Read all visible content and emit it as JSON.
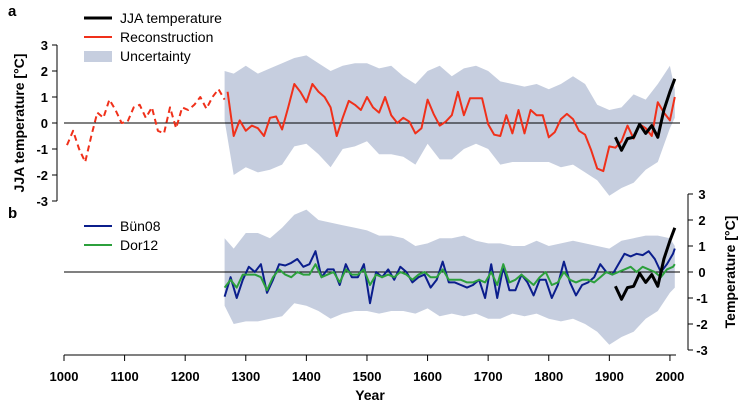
{
  "chart_data": [
    {
      "panel_label": "a",
      "type": "line",
      "ylabel": "JJA temperature [°C]",
      "ylim": [
        -3,
        3
      ],
      "yticks": [
        "3",
        "2",
        "1",
        "0",
        "-1",
        "-2",
        "-3"
      ],
      "legend": [
        "JJA temperature",
        "Reconstruction",
        "Uncertainty"
      ],
      "colors": {
        "instrumental": "#000000",
        "reconstruction": "#f0301a",
        "uncertainty": "#c6cedf"
      },
      "series": [
        {
          "name": "JJA temperature",
          "x": [
            1910,
            1920,
            1930,
            1940,
            1950,
            1960,
            1970,
            1980,
            1990,
            2000,
            2008
          ],
          "y": [
            -0.55,
            -1.05,
            -0.6,
            -0.55,
            -0.05,
            -0.4,
            -0.1,
            -0.55,
            0.5,
            1.2,
            1.7
          ]
        },
        {
          "name": "Reconstruction",
          "x": [
            1270,
            1280,
            1290,
            1300,
            1310,
            1320,
            1330,
            1340,
            1350,
            1360,
            1370,
            1380,
            1390,
            1400,
            1410,
            1420,
            1430,
            1440,
            1450,
            1460,
            1470,
            1480,
            1490,
            1500,
            1510,
            1520,
            1530,
            1540,
            1550,
            1560,
            1570,
            1580,
            1590,
            1600,
            1610,
            1620,
            1630,
            1640,
            1650,
            1660,
            1670,
            1680,
            1690,
            1700,
            1710,
            1720,
            1730,
            1740,
            1750,
            1760,
            1770,
            1780,
            1790,
            1800,
            1810,
            1820,
            1830,
            1840,
            1850,
            1860,
            1870,
            1880,
            1890,
            1900,
            1910,
            1920,
            1930,
            1940,
            1950,
            1960,
            1970,
            1980,
            1990,
            2000,
            2008
          ],
          "y": [
            1.2,
            -0.5,
            0.1,
            -0.3,
            -0.1,
            -0.2,
            -0.5,
            0.2,
            0.25,
            -0.25,
            0.6,
            1.5,
            1.2,
            0.8,
            1.5,
            1.2,
            1.0,
            0.6,
            -0.5,
            0.2,
            0.85,
            0.7,
            0.5,
            1.0,
            0.6,
            0.4,
            1.0,
            0.3,
            0.0,
            0.2,
            0.05,
            -0.4,
            -0.2,
            0.9,
            0.35,
            -0.1,
            0.05,
            0.3,
            1.2,
            0.3,
            0.95,
            0.95,
            0.95,
            -0.05,
            -0.45,
            -0.5,
            0.3,
            -0.4,
            0.5,
            -0.4,
            0.5,
            0.3,
            0.3,
            -0.55,
            -0.35,
            0.15,
            0.35,
            0.15,
            -0.3,
            -0.45,
            -1.05,
            -1.75,
            -1.85,
            -0.9,
            -0.95,
            -0.7,
            -0.1,
            -0.6,
            -0.05,
            -0.2,
            -0.5,
            0.8,
            0.4,
            0.1,
            1.0
          ]
        },
        {
          "name": "Reconstruction (early)",
          "x": [
            1005,
            1015,
            1025,
            1035,
            1045,
            1055,
            1065,
            1075,
            1085,
            1095,
            1105,
            1115,
            1125,
            1135,
            1145,
            1155,
            1165,
            1175,
            1185,
            1195,
            1205,
            1215,
            1225,
            1235,
            1245,
            1255,
            1265
          ],
          "y": [
            -0.85,
            -0.3,
            -1.0,
            -1.5,
            -0.5,
            0.4,
            0.2,
            0.9,
            0.5,
            0.0,
            0.05,
            0.6,
            0.7,
            0.2,
            0.6,
            -0.3,
            -0.4,
            0.6,
            -0.2,
            0.6,
            0.5,
            0.7,
            1.0,
            0.55,
            1.0,
            1.3,
            0.9
          ]
        }
      ],
      "uncertainty": {
        "x": [
          1265,
          1280,
          1300,
          1320,
          1340,
          1360,
          1380,
          1400,
          1420,
          1440,
          1460,
          1480,
          1500,
          1520,
          1540,
          1560,
          1580,
          1600,
          1620,
          1640,
          1660,
          1680,
          1700,
          1720,
          1740,
          1760,
          1780,
          1800,
          1820,
          1840,
          1860,
          1880,
          1900,
          1920,
          1940,
          1960,
          1980,
          2000,
          2008
        ],
        "upper": [
          2.0,
          1.9,
          2.2,
          1.9,
          2.1,
          2.3,
          2.5,
          2.6,
          2.3,
          2.0,
          2.2,
          2.3,
          2.3,
          2.1,
          2.2,
          1.8,
          1.5,
          2.0,
          2.2,
          1.8,
          2.1,
          2.2,
          2.0,
          1.6,
          1.5,
          1.4,
          1.5,
          1.3,
          1.5,
          1.8,
          1.5,
          0.7,
          0.5,
          0.6,
          1.1,
          0.9,
          1.5,
          2.2,
          1.3
        ],
        "lower": [
          0.1,
          -2.0,
          -1.7,
          -1.9,
          -1.8,
          -1.6,
          -0.9,
          -0.8,
          -1.2,
          -1.7,
          -1.0,
          -0.9,
          -0.7,
          -1.2,
          -1.2,
          -1.3,
          -1.6,
          -0.8,
          -1.4,
          -1.4,
          -1.0,
          -0.8,
          -1.0,
          -1.6,
          -1.5,
          -1.5,
          -1.5,
          -1.5,
          -1.7,
          -1.6,
          -1.9,
          -2.2,
          -2.8,
          -2.5,
          -2.3,
          -1.8,
          -1.5,
          -0.2,
          0.2
        ]
      }
    },
    {
      "panel_label": "b",
      "type": "line",
      "ylabel": "Temperature [°C]",
      "ylim": [
        -3,
        3
      ],
      "yticks": [
        "3",
        "2",
        "1",
        "0",
        "-1",
        "-2",
        "-3"
      ],
      "legend": [
        "Bün08",
        "Dor12"
      ],
      "colors": {
        "bun08": "#0b1e8c",
        "dor12": "#2ca03c",
        "instrumental": "#000000",
        "uncertainty": "#c6cedf"
      },
      "series": [
        {
          "name": "Bün08",
          "x": [
            1265,
            1275,
            1285,
            1295,
            1305,
            1315,
            1325,
            1335,
            1345,
            1355,
            1365,
            1375,
            1385,
            1395,
            1405,
            1415,
            1425,
            1435,
            1445,
            1455,
            1465,
            1475,
            1485,
            1495,
            1505,
            1515,
            1525,
            1535,
            1545,
            1555,
            1565,
            1575,
            1585,
            1595,
            1605,
            1615,
            1625,
            1635,
            1645,
            1655,
            1665,
            1675,
            1685,
            1695,
            1705,
            1715,
            1725,
            1735,
            1745,
            1755,
            1765,
            1775,
            1785,
            1795,
            1805,
            1815,
            1825,
            1835,
            1845,
            1855,
            1865,
            1875,
            1885,
            1895,
            1905,
            1915,
            1925,
            1935,
            1945,
            1955,
            1965,
            1975,
            1985,
            1995,
            2005,
            2008
          ],
          "y": [
            -0.95,
            -0.2,
            -1.0,
            -0.3,
            0.2,
            0.0,
            0.3,
            -0.8,
            -0.3,
            0.3,
            0.25,
            0.35,
            0.5,
            0.2,
            0.3,
            0.8,
            -0.2,
            0.1,
            0.1,
            -0.5,
            0.3,
            -0.2,
            -0.2,
            0.3,
            -1.2,
            0.0,
            -0.2,
            0.1,
            -0.3,
            0.2,
            0.0,
            -0.4,
            -0.2,
            -0.1,
            -0.6,
            -0.3,
            0.4,
            -0.4,
            -0.4,
            -0.5,
            -0.6,
            -0.5,
            -0.3,
            -1.0,
            0.3,
            -1.0,
            0.2,
            -0.7,
            -0.7,
            -0.1,
            -0.4,
            -0.9,
            -0.3,
            -0.3,
            -1.0,
            -0.5,
            0.4,
            -0.4,
            -0.9,
            -0.5,
            -0.4,
            -0.2,
            0.3,
            0.0,
            -0.1,
            0.3,
            0.7,
            0.6,
            0.7,
            0.65,
            0.8,
            0.5,
            0.0,
            0.3,
            0.7,
            0.9
          ]
        },
        {
          "name": "Dor12",
          "x": [
            1265,
            1275,
            1285,
            1295,
            1305,
            1315,
            1325,
            1335,
            1345,
            1355,
            1365,
            1375,
            1385,
            1395,
            1405,
            1415,
            1425,
            1435,
            1445,
            1455,
            1465,
            1475,
            1485,
            1495,
            1505,
            1515,
            1525,
            1535,
            1545,
            1555,
            1565,
            1575,
            1585,
            1595,
            1605,
            1615,
            1625,
            1635,
            1645,
            1655,
            1665,
            1675,
            1685,
            1695,
            1705,
            1715,
            1725,
            1735,
            1745,
            1755,
            1765,
            1775,
            1785,
            1795,
            1805,
            1815,
            1825,
            1835,
            1845,
            1855,
            1865,
            1875,
            1885,
            1895,
            1905,
            1915,
            1925,
            1935,
            1945,
            1955,
            1965,
            1975,
            1985,
            1995,
            2005,
            2008
          ],
          "y": [
            -0.6,
            -0.3,
            -0.6,
            -0.1,
            -0.1,
            -0.1,
            -0.2,
            -0.7,
            -0.2,
            0.1,
            -0.1,
            -0.2,
            0.0,
            -0.1,
            -0.1,
            0.3,
            -0.2,
            -0.1,
            0.0,
            -0.4,
            0.1,
            -0.1,
            -0.1,
            0.1,
            -0.5,
            -0.1,
            -0.2,
            -0.1,
            -0.2,
            0.0,
            -0.1,
            -0.3,
            -0.1,
            0.0,
            -0.2,
            -0.2,
            0.1,
            -0.3,
            -0.3,
            -0.3,
            -0.4,
            -0.4,
            -0.3,
            -0.4,
            0.0,
            -0.5,
            0.3,
            -0.4,
            -0.3,
            -0.1,
            -0.3,
            -0.5,
            -0.2,
            0.0,
            -0.5,
            -0.4,
            0.0,
            -0.3,
            -0.4,
            -0.3,
            -0.3,
            -0.4,
            -0.2,
            0.0,
            -0.1,
            0.0,
            0.1,
            0.2,
            0.0,
            0.2,
            0.1,
            0.0,
            -0.2,
            0.1,
            0.2,
            0.3
          ]
        },
        {
          "name": "JJA temperature",
          "x": [
            1910,
            1920,
            1930,
            1940,
            1950,
            1960,
            1970,
            1980,
            1990,
            2000,
            2008
          ],
          "y": [
            -0.55,
            -1.05,
            -0.6,
            -0.55,
            -0.05,
            -0.4,
            -0.1,
            -0.55,
            0.5,
            1.2,
            1.7
          ]
        }
      ],
      "uncertainty": {
        "x": [
          1265,
          1280,
          1300,
          1320,
          1340,
          1360,
          1380,
          1400,
          1420,
          1440,
          1460,
          1480,
          1500,
          1520,
          1540,
          1560,
          1580,
          1600,
          1620,
          1640,
          1660,
          1680,
          1700,
          1720,
          1740,
          1760,
          1780,
          1800,
          1820,
          1840,
          1860,
          1880,
          1900,
          1920,
          1940,
          1960,
          1980,
          2000,
          2008
        ],
        "upper": [
          1.3,
          0.9,
          1.5,
          1.5,
          1.3,
          1.7,
          2.2,
          2.4,
          2.0,
          1.9,
          1.8,
          1.7,
          1.6,
          1.4,
          1.4,
          1.3,
          1.0,
          1.1,
          1.3,
          1.3,
          1.4,
          1.2,
          1.1,
          1.1,
          1.0,
          1.0,
          1.2,
          1.0,
          1.1,
          1.2,
          1.1,
          1.0,
          0.9,
          1.2,
          1.3,
          1.4,
          1.4,
          1.3,
          1.0
        ],
        "lower": [
          -1.3,
          -2.0,
          -1.9,
          -1.9,
          -1.8,
          -1.7,
          -1.2,
          -1.3,
          -1.5,
          -1.8,
          -1.6,
          -1.5,
          -1.5,
          -1.6,
          -1.5,
          -1.5,
          -1.6,
          -1.4,
          -1.7,
          -1.6,
          -1.7,
          -1.6,
          -1.8,
          -1.8,
          -1.6,
          -1.7,
          -1.6,
          -1.8,
          -1.9,
          -1.8,
          -2.0,
          -2.3,
          -2.8,
          -2.5,
          -2.3,
          -1.8,
          -1.5,
          -0.8,
          -0.6
        ]
      }
    }
  ],
  "xaxis": {
    "xlabel": "Year",
    "xlim": [
      1000,
      2010
    ],
    "ticks": [
      "1000",
      "1100",
      "1200",
      "1300",
      "1400",
      "1500",
      "1600",
      "1700",
      "1800",
      "1900",
      "2000"
    ]
  }
}
